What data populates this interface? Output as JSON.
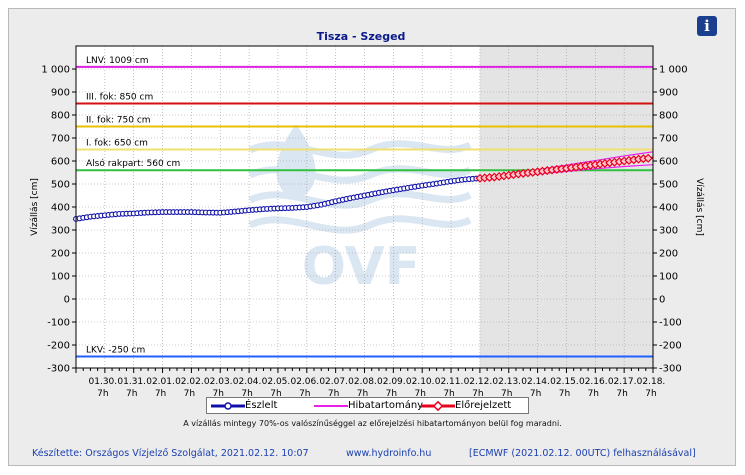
{
  "colors": {
    "observed": "#1010a8",
    "forecast": "#e8001c",
    "error_band": "#e820e8",
    "lnv": "#e020e0",
    "level_iii": "#d41010",
    "level_ii": "#e8c000",
    "level_i": "#f0e070",
    "lower_quay": "#30c040",
    "lkv": "#2060ff",
    "forecast_shade": "#e4e4e4",
    "plot_bg": "#ffffff",
    "watermark": "#bcd2e8"
  },
  "icons": {
    "info": "info-icon",
    "watermark": "ovf-logo"
  },
  "info_glyph": "i",
  "watermark_text": "OVF",
  "legend": {
    "observed": "Észlelt",
    "error_band": "Hibatartomány",
    "forecast": "Előrejelzett"
  },
  "note": "A vízállás mintegy 70%-os valószínűséggel az előrejelzési hibatartományon belül fog maradni.",
  "footer": {
    "credit": "Készítette: Országos Vízjelző Szolgálat, 2021.02.12. 10:07",
    "link": "www.hydroinfo.hu",
    "model": "[ECMWF (2021.02.12. 00UTC) felhasználásával]"
  },
  "chart_data": {
    "type": "line",
    "title": "Tisza - Szeged",
    "ylabel": "Vízállás [cm]",
    "ylabel_right": "Vízállás [cm]",
    "ylim": [
      -300,
      1100
    ],
    "yticks": [
      -300,
      -200,
      -100,
      0,
      100,
      200,
      300,
      400,
      500,
      600,
      700,
      800,
      900,
      1000
    ],
    "ytick_labels": [
      "-300",
      "-200",
      "-100",
      "0",
      "100",
      "200",
      "300",
      "400",
      "500",
      "600",
      "700",
      "800",
      "900",
      "1 000"
    ],
    "x_unit": "day",
    "x_start": "01.29. 7h",
    "x_end": "02.18. 7h",
    "xlim_days": [
      0,
      20
    ],
    "xtick_labels": [
      "01.30.",
      "01.31.",
      "02.01.",
      "02.02.",
      "02.03.",
      "02.04.",
      "02.05.",
      "02.06.",
      "02.07.",
      "02.08.",
      "02.09.",
      "02.10.",
      "02.11.",
      "02.12.",
      "02.13.",
      "02.14.",
      "02.15.",
      "02.16.",
      "02.17.",
      "02.18."
    ],
    "xtick_sublabel": "7h",
    "grid": true,
    "forecast_region_start": "02.12. 7h",
    "reference_lines": [
      {
        "label": "LNV: 1009 cm",
        "value": 1009,
        "color_key": "lnv"
      },
      {
        "label": "III. fok: 850 cm",
        "value": 850,
        "color_key": "level_iii"
      },
      {
        "label": "II. fok: 750 cm",
        "value": 750,
        "color_key": "level_ii"
      },
      {
        "label": "I. fok: 650 cm",
        "value": 650,
        "color_key": "level_i"
      },
      {
        "label": "Alsó rakpart: 560 cm",
        "value": 560,
        "color_key": "lower_quay"
      },
      {
        "label": "LKV: -250 cm",
        "value": -250,
        "color_key": "lkv"
      }
    ],
    "series": [
      {
        "name": "Észlelt",
        "x": [
          "01.29. 7h",
          "01.29. 19h",
          "01.30. 7h",
          "01.30. 19h",
          "01.31. 7h",
          "01.31. 19h",
          "02.01. 7h",
          "02.01. 19h",
          "02.02. 7h",
          "02.02. 19h",
          "02.03. 7h",
          "02.03. 19h",
          "02.04. 7h",
          "02.04. 19h",
          "02.05. 7h",
          "02.05. 19h",
          "02.06. 7h",
          "02.06. 19h",
          "02.07. 7h",
          "02.07. 19h",
          "02.08. 7h",
          "02.08. 19h",
          "02.09. 7h",
          "02.09. 19h",
          "02.10. 7h",
          "02.10. 19h",
          "02.11. 7h",
          "02.11. 19h",
          "02.12. 7h"
        ],
        "values": [
          348,
          358,
          364,
          370,
          372,
          376,
          378,
          378,
          378,
          376,
          375,
          380,
          386,
          391,
          394,
          396,
          400,
          410,
          425,
          438,
          450,
          462,
          473,
          483,
          493,
          502,
          512,
          520,
          525
        ]
      },
      {
        "name": "Előrejelzett",
        "x": [
          "02.12. 7h",
          "02.12. 19h",
          "02.13. 7h",
          "02.13. 19h",
          "02.14. 7h",
          "02.14. 19h",
          "02.15. 7h",
          "02.15. 19h",
          "02.16. 7h",
          "02.16. 19h",
          "02.17. 7h",
          "02.17. 19h",
          "02.18. 7h"
        ],
        "values": [
          525,
          530,
          538,
          546,
          553,
          561,
          568,
          576,
          584,
          592,
          600,
          608,
          614
        ]
      },
      {
        "name": "Hibatartomány",
        "x": [
          "02.12. 7h",
          "02.13. 7h",
          "02.14. 7h",
          "02.15. 7h",
          "02.16. 7h",
          "02.17. 7h",
          "02.18. 7h"
        ],
        "lower": [
          525,
          534,
          544,
          555,
          566,
          576,
          584
        ],
        "upper": [
          525,
          542,
          562,
          582,
          602,
          622,
          640
        ]
      }
    ]
  }
}
